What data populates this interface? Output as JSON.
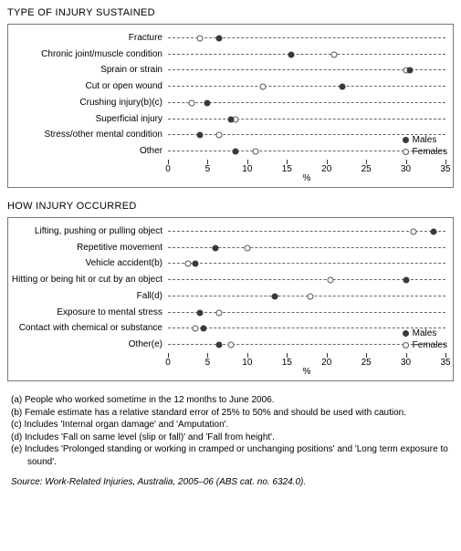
{
  "charts": [
    {
      "title": "TYPE OF INJURY SUSTAINED",
      "xlabel": "%",
      "xmax": 35,
      "xticks": [
        0,
        5,
        10,
        15,
        20,
        25,
        30,
        35
      ],
      "legend": {
        "male": "Males",
        "female": "Females"
      },
      "colors": {
        "male": "#3a3a3a",
        "female_border": "#555555",
        "female_fill": "#ffffff",
        "grid": "#666666"
      },
      "rows": [
        {
          "label": "Fracture",
          "male": 6.5,
          "female": 4.0
        },
        {
          "label": "Chronic joint/muscle condition",
          "male": 15.5,
          "female": 21.0
        },
        {
          "label": "Sprain or strain",
          "male": 30.5,
          "female": 30.0
        },
        {
          "label": "Cut or open wound",
          "male": 22.0,
          "female": 12.0
        },
        {
          "label": "Crushing injury(b)(c)",
          "male": 5.0,
          "female": 3.0
        },
        {
          "label": "Superficial injury",
          "male": 8.0,
          "female": 8.5
        },
        {
          "label": "Stress/other mental condition",
          "male": 4.0,
          "female": 6.5
        },
        {
          "label": "Other",
          "male": 8.5,
          "female": 11.0
        }
      ]
    },
    {
      "title": "HOW INJURY OCCURRED",
      "xlabel": "%",
      "xmax": 35,
      "xticks": [
        0,
        5,
        10,
        15,
        20,
        25,
        30,
        35
      ],
      "legend": {
        "male": "Males",
        "female": "Females"
      },
      "colors": {
        "male": "#3a3a3a",
        "female_border": "#555555",
        "female_fill": "#ffffff",
        "grid": "#666666"
      },
      "rows": [
        {
          "label": "Lifting, pushing or pulling object",
          "male": 33.5,
          "female": 31.0
        },
        {
          "label": "Repetitive movement",
          "male": 6.0,
          "female": 10.0
        },
        {
          "label": "Vehicle accident(b)",
          "male": 3.5,
          "female": 2.5
        },
        {
          "label": "Hitting or being hit or cut by an object",
          "male": 30.0,
          "female": 20.5
        },
        {
          "label": "Fall(d)",
          "male": 13.5,
          "female": 18.0
        },
        {
          "label": "Exposure to mental stress",
          "male": 4.0,
          "female": 6.5
        },
        {
          "label": "Contact with chemical or substance",
          "male": 4.5,
          "female": 3.5
        },
        {
          "label": "Other(e)",
          "male": 6.5,
          "female": 8.0
        }
      ]
    }
  ],
  "footnotes": [
    "(a) People who worked sometime in the 12 months to June 2006.",
    "(b) Female estimate has a relative standard error of 25% to 50% and should be used with caution.",
    "(c) Includes 'Internal organ damage' and 'Amputation'.",
    "(d) Includes 'Fall on same level (slip or fall)' and 'Fall from height'.",
    "(e) Includes 'Prolonged standing or working in cramped or unchanging positions' and 'Long term exposure to sound'."
  ],
  "source": "Source: Work-Related Injuries, Australia, 2005–06 (ABS cat. no. 6324.0)."
}
